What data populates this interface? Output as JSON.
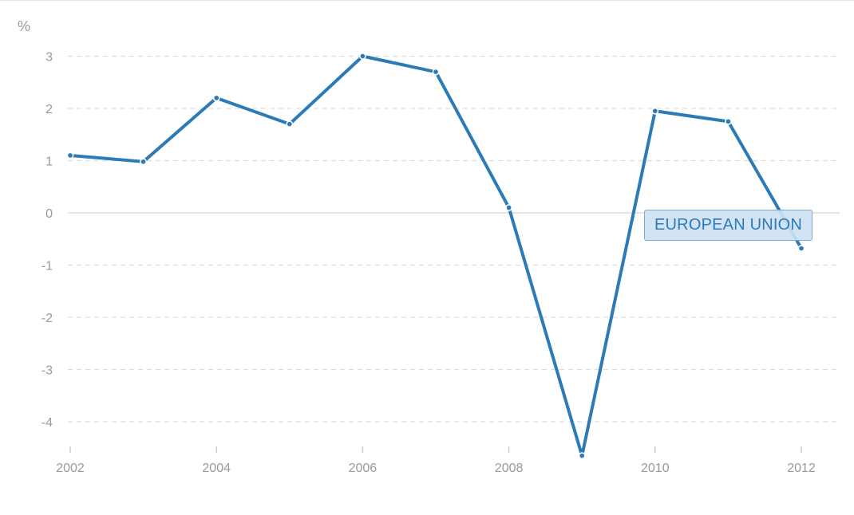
{
  "chart_data": {
    "type": "line",
    "title": "",
    "xlabel": "",
    "ylabel": "%",
    "x": [
      2002,
      2003,
      2004,
      2005,
      2006,
      2007,
      2008,
      2009,
      2010,
      2011,
      2012
    ],
    "series": [
      {
        "name": "EUROPEAN UNION",
        "color": "#2c7bb6",
        "values": [
          1.1,
          0.98,
          2.2,
          1.7,
          3.0,
          2.7,
          0.1,
          -4.65,
          1.95,
          1.75,
          -0.68
        ]
      }
    ],
    "xticks": [
      "2002",
      "2004",
      "2006",
      "2008",
      "2010",
      "2012"
    ],
    "yticks": [
      "3",
      "2",
      "1",
      "0",
      "-1",
      "-2",
      "-3",
      "-4"
    ],
    "ylim": [
      -4.55,
      3.45
    ],
    "xlim": [
      2002,
      2012.5
    ],
    "grid": true,
    "legend": "inline label near end of series"
  }
}
